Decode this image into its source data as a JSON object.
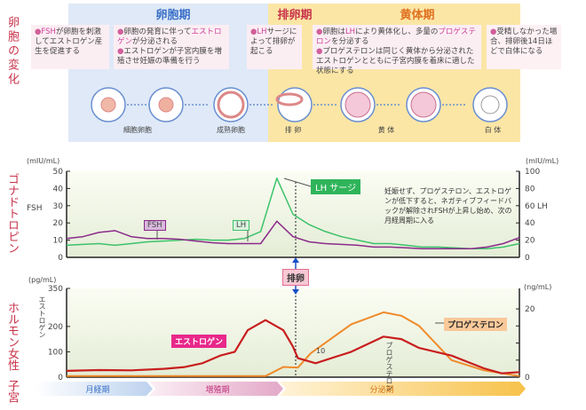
{
  "side_labels": {
    "follicle_change": "卵胞の変化",
    "gonadotropin": "ゴナドトロピン",
    "female_hormone": "ホルモン女性",
    "uterus": "子宮"
  },
  "phases": {
    "follicular": "卵胞期",
    "ovulatory": "排卵期",
    "luteal": "黄体期"
  },
  "notes": [
    {
      "hl": "FSH",
      "text": "が卵胞を刺激してエストロゲン産生を促進する"
    },
    {
      "pre": "卵胞の発育に伴って",
      "hl": "エストロゲン",
      "text": "が分泌される",
      "line2": "エストロゲンが子宮内膜を増殖させ妊娠の準備を行う"
    },
    {
      "hl": "LH",
      "text": "サージによって排卵が起こる"
    },
    {
      "pre": "卵胞は",
      "hl": "LH",
      "mid": "により黄体化し、多量の",
      "hl2": "プロゲステロン",
      "text": "を分泌する",
      "line2": "プロゲステロンは同じく黄体から分泌されたエストロゲンとともに子宮内膜を着床に適した状態にする"
    },
    {
      "text": "受精しなかった場合、排卵後14日ほどで白体になる"
    }
  ],
  "stages": [
    "細胞卵胞",
    "成熟卵胞",
    "排 卵",
    "黄 体",
    "白 体"
  ],
  "colors": {
    "fsh": "#8a2a8a",
    "lh": "#3cc26a",
    "estrogen": "#c81e1e",
    "progesterone": "#f08a2a",
    "follicular_bg": "#dfe9f7",
    "luteal_bg": "#fbe6a6"
  },
  "chart_data": [
    {
      "type": "line",
      "left_unit": "(mIU/mL)",
      "right_unit": "(mIU/mL)",
      "left_axis_label": "FSH",
      "right_axis_label": "LH",
      "left_ylim": [
        0,
        50
      ],
      "right_ylim": [
        0,
        100
      ],
      "left_ticks": [
        "0",
        "10",
        "20",
        "30",
        "40",
        "50"
      ],
      "right_ticks": [
        "0",
        "20",
        "40",
        "60",
        "80",
        "100"
      ],
      "x": [
        0,
        1,
        2,
        3,
        4,
        5,
        6,
        7,
        8,
        9,
        10,
        11,
        12,
        13,
        14,
        15,
        16,
        17,
        18,
        19,
        20,
        21,
        22,
        23,
        24,
        25,
        26,
        27,
        28
      ],
      "series": [
        {
          "name": "FSH",
          "axis": "left",
          "values": [
            11,
            12,
            14.5,
            15.5,
            12,
            11,
            11,
            10.5,
            9.5,
            8.5,
            8,
            8,
            8,
            21,
            12,
            9,
            8,
            7.5,
            7,
            6,
            6,
            5.5,
            5,
            5,
            5,
            5,
            6,
            8,
            11.5
          ]
        },
        {
          "name": "LH",
          "axis": "right",
          "values": [
            14,
            15,
            16,
            14,
            16,
            18,
            19,
            20,
            21,
            20,
            20,
            22,
            30,
            92,
            50,
            38,
            30,
            24,
            20,
            16,
            16,
            14,
            12,
            12,
            11,
            10,
            10,
            12,
            16
          ]
        }
      ],
      "annotations": {
        "lh_surge": "LH サージ",
        "note": "妊娠せず、プロゲステロン、エストロゲンが低下すると、ネガティブフィードバックが解除されFSHが上昇し始め、次の月経周期に入る"
      }
    },
    {
      "type": "line",
      "left_unit": "(pg/mL)",
      "right_unit": "(ng/mL)",
      "left_ylim": [
        0,
        350
      ],
      "right_ylim": [
        0,
        26
      ],
      "left_ticks": [
        "0",
        "100",
        "200",
        "350"
      ],
      "right_ticks": [
        "0",
        "20"
      ],
      "series": [
        {
          "name": "エストロゲン",
          "axis": "left",
          "x": [
            0,
            2,
            4,
            6,
            7.3,
            8.4,
            9.5,
            10.4,
            11.2,
            12.3,
            13.4,
            14,
            14.3,
            15.4,
            17.6,
            19.6,
            20.7,
            21.8,
            23.8,
            25.8,
            26.9,
            28
          ],
          "values": [
            25,
            28,
            27,
            33,
            40,
            55,
            85,
            100,
            185,
            225,
            185,
            120,
            75,
            55,
            100,
            160,
            150,
            115,
            85,
            35,
            15,
            20
          ]
        },
        {
          "name": "プロゲステロン",
          "axis": "right",
          "x": [
            0,
            6,
            12.3,
            13.4,
            14.3,
            15.1,
            17.6,
            19.6,
            20.7,
            21.8,
            23.8,
            25.8,
            28
          ],
          "values": [
            0.3,
            0.3,
            0.3,
            3,
            2.8,
            7,
            15.5,
            19,
            18,
            15,
            5,
            2,
            0.3
          ]
        }
      ],
      "annotations": {
        "ovulation": "排卵",
        "mid_tick": "10",
        "estrogen_axis": "エストロゲン",
        "progesterone_axis": "プロゲステロン"
      }
    }
  ],
  "uterus_phases": [
    "月経期",
    "増殖期",
    "分泌期"
  ]
}
